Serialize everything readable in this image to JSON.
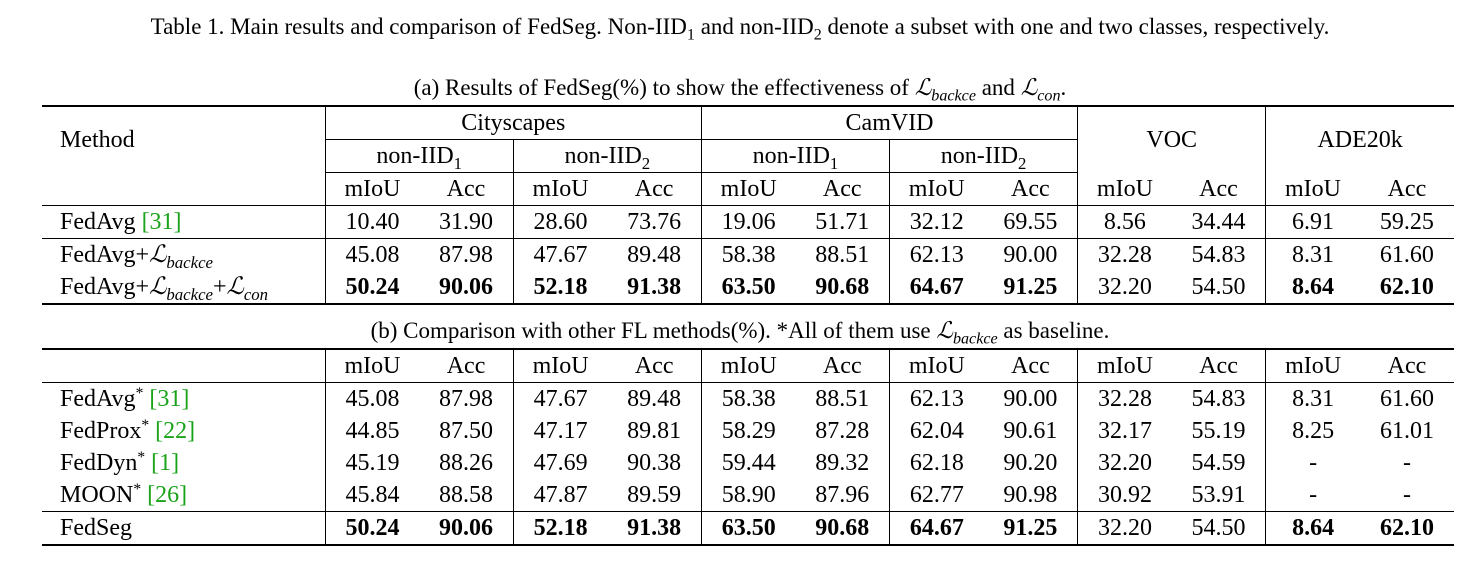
{
  "caption": {
    "prefix": "Table 1. Main results and comparison of FedSeg. Non-IID",
    "sub1": "1",
    "mid": " and non-IID",
    "sub2": "2",
    "suffix": " denote a subset with one and two classes, respectively."
  },
  "part_a": {
    "caption_pre": "(a) Results of FedSeg(%) to show the effectiveness of ",
    "loss1_sub": "backce",
    "caption_and": " and ",
    "loss2_sub": "con",
    "caption_end": ".",
    "header": {
      "method": "Method",
      "datasets": [
        "Cityscapes",
        "CamVID",
        "VOC",
        "ADE20k"
      ],
      "splits": [
        "non-IID",
        "non-IID",
        "non-IID",
        "non-IID"
      ],
      "split_subs": [
        "1",
        "2",
        "1",
        "2"
      ],
      "metrics": [
        "mIoU",
        "Acc",
        "mIoU",
        "Acc",
        "mIoU",
        "Acc",
        "mIoU",
        "Acc",
        "mIoU",
        "Acc",
        "mIoU",
        "Acc"
      ]
    },
    "rows": [
      {
        "name": "FedAvg ",
        "cite": "[31]",
        "values": [
          "10.40",
          "31.90",
          "28.60",
          "73.76",
          "19.06",
          "51.71",
          "32.12",
          "69.55",
          "8.56",
          "34.44",
          "6.91",
          "59.25"
        ]
      },
      {
        "name": "FedAvg+",
        "loss_sub": "backce",
        "values": [
          "45.08",
          "87.98",
          "47.67",
          "89.48",
          "58.38",
          "88.51",
          "62.13",
          "90.00",
          "32.28",
          "54.83",
          "8.31",
          "61.60"
        ]
      },
      {
        "name": "FedAvg+",
        "loss_sub": "backce",
        "plus": "+",
        "loss2_sub": "con",
        "values": [
          "50.24",
          "90.06",
          "52.18",
          "91.38",
          "63.50",
          "90.68",
          "64.67",
          "91.25",
          "32.20",
          "54.50",
          "8.64",
          "62.10"
        ]
      }
    ]
  },
  "part_b": {
    "caption_pre": "(b) Comparison with other FL methods(%). *All of them use ",
    "loss_sub": "backce",
    "caption_end": " as baseline.",
    "metrics": [
      "mIoU",
      "Acc",
      "mIoU",
      "Acc",
      "mIoU",
      "Acc",
      "mIoU",
      "Acc",
      "mIoU",
      "Acc",
      "mIoU",
      "Acc"
    ],
    "rows": [
      {
        "name": "FedAvg",
        "star": "*",
        "cite": "[31]",
        "values": [
          "45.08",
          "87.98",
          "47.67",
          "89.48",
          "58.38",
          "88.51",
          "62.13",
          "90.00",
          "32.28",
          "54.83",
          "8.31",
          "61.60"
        ]
      },
      {
        "name": "FedProx",
        "star": "*",
        "cite": "[22]",
        "values": [
          "44.85",
          "87.50",
          "47.17",
          "89.81",
          "58.29",
          "87.28",
          "62.04",
          "90.61",
          "32.17",
          "55.19",
          "8.25",
          "61.01"
        ]
      },
      {
        "name": "FedDyn",
        "star": "*",
        "cite": "[1]",
        "values": [
          "45.19",
          "88.26",
          "47.69",
          "90.38",
          "59.44",
          "89.32",
          "62.18",
          "90.20",
          "32.20",
          "54.59",
          "-",
          "-"
        ]
      },
      {
        "name": "MOON",
        "star": "*",
        "cite": "[26]",
        "values": [
          "45.84",
          "88.58",
          "47.87",
          "89.59",
          "58.90",
          "87.96",
          "62.77",
          "90.98",
          "30.92",
          "53.91",
          "-",
          "-"
        ]
      },
      {
        "name": "FedSeg",
        "values": [
          "50.24",
          "90.06",
          "52.18",
          "91.38",
          "63.50",
          "90.68",
          "64.67",
          "91.25",
          "32.20",
          "54.50",
          "8.64",
          "62.10"
        ]
      }
    ]
  }
}
